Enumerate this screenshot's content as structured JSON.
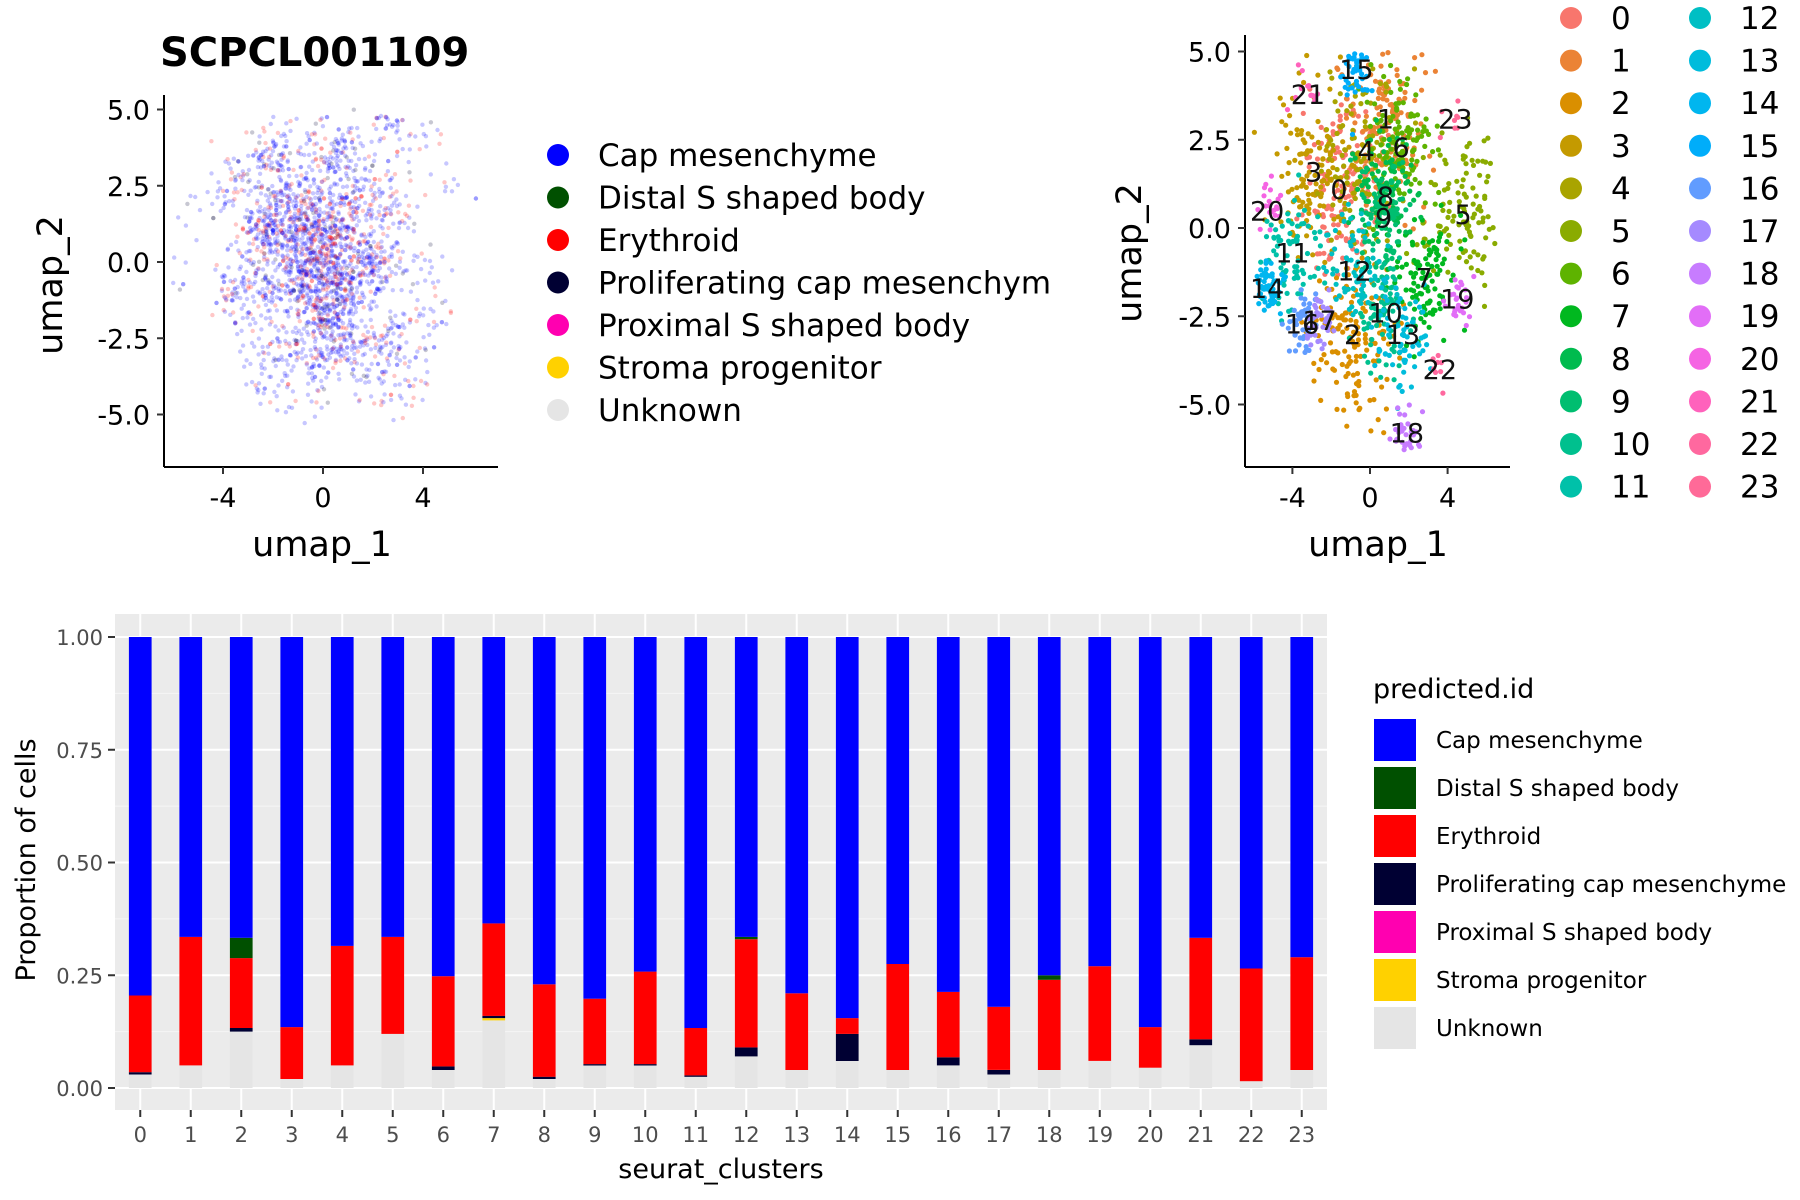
{
  "chart_data": [
    {
      "type": "scatter",
      "title": "SCPCL001109",
      "xlabel": "umap_1",
      "ylabel": "umap_2",
      "xticks": [
        "-4",
        "0",
        "4"
      ],
      "yticks": [
        "5.0",
        "2.5",
        "0.0",
        "-2.5",
        "-5.0"
      ],
      "xlim": [
        -6.2,
        6.8
      ],
      "ylim": [
        -6.8,
        5.5
      ],
      "grid": false,
      "legend_position": "right",
      "legend": [
        {
          "name": "Cap mesenchyme",
          "color": "#0000ff"
        },
        {
          "name": "Distal S shaped body",
          "color": "#005000"
        },
        {
          "name": "Erythroid",
          "color": "#ff0000"
        },
        {
          "name": "Proliferating cap mesenchym",
          "color": "#000033"
        },
        {
          "name": "Proximal S shaped body",
          "color": "#ff00b0"
        },
        {
          "name": "Stroma progenitor",
          "color": "#ffd100"
        },
        {
          "name": "Unknown",
          "color": "#e5e5e5"
        }
      ]
    },
    {
      "type": "scatter",
      "xlabel": "umap_1",
      "ylabel": "umap_2",
      "xticks": [
        "-4",
        "0",
        "4"
      ],
      "yticks": [
        "5.0",
        "2.5",
        "0.0",
        "-2.5",
        "-5.0"
      ],
      "xlim": [
        -6.2,
        6.8
      ],
      "ylim": [
        -6.8,
        5.5
      ],
      "grid": false,
      "legend_position": "right",
      "clusters": [
        {
          "label": "0",
          "color": "#F8766D",
          "x": -1.6,
          "y": 1.1
        },
        {
          "label": "1",
          "color": "#EB8335",
          "x": 0.8,
          "y": 3.1
        },
        {
          "label": "2",
          "color": "#DA8F00",
          "x": -0.9,
          "y": -3.0
        },
        {
          "label": "3",
          "color": "#C49A00",
          "x": -2.9,
          "y": 1.6
        },
        {
          "label": "4",
          "color": "#A9A400",
          "x": -0.2,
          "y": 2.2
        },
        {
          "label": "5",
          "color": "#8AAB00",
          "x": 4.8,
          "y": 0.4
        },
        {
          "label": "6",
          "color": "#5EB300",
          "x": 1.6,
          "y": 2.3
        },
        {
          "label": "7",
          "color": "#00B81F",
          "x": 2.8,
          "y": -1.4
        },
        {
          "label": "8",
          "color": "#00BB4E",
          "x": 0.8,
          "y": 0.9
        },
        {
          "label": "9",
          "color": "#00BE70",
          "x": 0.7,
          "y": 0.3
        },
        {
          "label": "10",
          "color": "#00C08E",
          "x": 0.8,
          "y": -2.4
        },
        {
          "label": "11",
          "color": "#00C1A9",
          "x": -4.0,
          "y": -0.7
        },
        {
          "label": "12",
          "color": "#00BFC4",
          "x": -0.8,
          "y": -1.2
        },
        {
          "label": "13",
          "color": "#00BCDC",
          "x": 1.7,
          "y": -3.0
        },
        {
          "label": "14",
          "color": "#00B6EF",
          "x": -5.3,
          "y": -1.7
        },
        {
          "label": "15",
          "color": "#00ADFA",
          "x": -0.7,
          "y": 4.5
        },
        {
          "label": "16",
          "color": "#619CFF",
          "x": -3.5,
          "y": -2.7
        },
        {
          "label": "17",
          "color": "#A58AFF",
          "x": -2.6,
          "y": -2.6
        },
        {
          "label": "18",
          "color": "#C77CFF",
          "x": 1.9,
          "y": -5.8
        },
        {
          "label": "19",
          "color": "#E26EF7",
          "x": 4.5,
          "y": -2.0
        },
        {
          "label": "20",
          "color": "#F564E3",
          "x": -5.3,
          "y": 0.5
        },
        {
          "label": "21",
          "color": "#FF62BC",
          "x": -3.2,
          "y": 3.8
        },
        {
          "label": "22",
          "color": "#FF689F",
          "x": 3.6,
          "y": -4.0
        },
        {
          "label": "23",
          "color": "#FF6A98",
          "x": 4.4,
          "y": 3.1
        }
      ]
    },
    {
      "type": "bar",
      "stacked": true,
      "xlabel": "seurat_clusters",
      "ylabel": "Proportion of cells",
      "ylim": [
        0,
        1
      ],
      "yticks": [
        "0.00",
        "0.25",
        "0.50",
        "0.75",
        "1.00"
      ],
      "grid": true,
      "legend_title": "predicted.id",
      "legend_position": "right",
      "categories": [
        "0",
        "1",
        "2",
        "3",
        "4",
        "5",
        "6",
        "7",
        "8",
        "9",
        "10",
        "11",
        "12",
        "13",
        "14",
        "15",
        "16",
        "17",
        "18",
        "19",
        "20",
        "21",
        "22",
        "23"
      ],
      "series": [
        {
          "name": "Unknown",
          "color": "#e5e5e5",
          "values": [
            0.03,
            0.05,
            0.125,
            0.02,
            0.05,
            0.12,
            0.04,
            0.15,
            0.02,
            0.05,
            0.05,
            0.025,
            0.07,
            0.04,
            0.06,
            0.04,
            0.05,
            0.03,
            0.04,
            0.06,
            0.045,
            0.095,
            0.015,
            0.04
          ]
        },
        {
          "name": "Stroma progenitor",
          "color": "#ffd100",
          "values": [
            0,
            0,
            0,
            0,
            0,
            0,
            0,
            0.005,
            0,
            0,
            0,
            0,
            0,
            0,
            0,
            0,
            0,
            0,
            0,
            0,
            0,
            0,
            0,
            0
          ]
        },
        {
          "name": "Proximal S shaped body",
          "color": "#ff00b0",
          "values": [
            0,
            0,
            0,
            0,
            0,
            0,
            0,
            0,
            0,
            0,
            0,
            0,
            0,
            0,
            0,
            0,
            0,
            0,
            0,
            0,
            0,
            0,
            0,
            0
          ]
        },
        {
          "name": "Proliferating cap mesenchyme",
          "color": "#000033",
          "values": [
            0.005,
            0,
            0.008,
            0,
            0,
            0,
            0.008,
            0.005,
            0.005,
            0.003,
            0.003,
            0.003,
            0.02,
            0,
            0.06,
            0,
            0.018,
            0.01,
            0,
            0,
            0,
            0.013,
            0,
            0
          ]
        },
        {
          "name": "Erythroid",
          "color": "#ff0000",
          "values": [
            0.17,
            0.285,
            0.155,
            0.115,
            0.265,
            0.215,
            0.2,
            0.205,
            0.205,
            0.145,
            0.205,
            0.105,
            0.24,
            0.17,
            0.035,
            0.235,
            0.145,
            0.14,
            0.2,
            0.21,
            0.09,
            0.225,
            0.25,
            0.25
          ]
        },
        {
          "name": "Distal S shaped body",
          "color": "#005000",
          "values": [
            0,
            0,
            0.045,
            0,
            0,
            0,
            0,
            0,
            0,
            0,
            0,
            0,
            0.005,
            0,
            0,
            0,
            0,
            0,
            0.01,
            0,
            0,
            0,
            0,
            0
          ]
        },
        {
          "name": "Cap mesenchyme",
          "color": "#0000ff",
          "values": [
            0.795,
            0.665,
            0.667,
            0.865,
            0.685,
            0.665,
            0.752,
            0.635,
            0.77,
            0.802,
            0.742,
            0.867,
            0.665,
            0.79,
            0.845,
            0.725,
            0.787,
            0.82,
            0.75,
            0.73,
            0.865,
            0.667,
            0.735,
            0.71
          ]
        }
      ],
      "legend": [
        {
          "name": "Cap mesenchyme",
          "color": "#0000ff"
        },
        {
          "name": "Distal S shaped body",
          "color": "#005000"
        },
        {
          "name": "Erythroid",
          "color": "#ff0000"
        },
        {
          "name": "Proliferating cap mesenchyme",
          "color": "#000033"
        },
        {
          "name": "Proximal S shaped body",
          "color": "#ff00b0"
        },
        {
          "name": "Stroma progenitor",
          "color": "#ffd100"
        },
        {
          "name": "Unknown",
          "color": "#e5e5e5"
        }
      ]
    }
  ]
}
